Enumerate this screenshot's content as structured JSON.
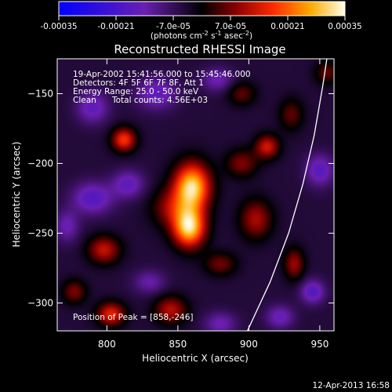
{
  "chart_data": {
    "type": "heatmap",
    "title": "Reconstructed RHESSI Image",
    "xlabel": "Heliocentric X (arcsec)",
    "ylabel": "Heliocentric Y (arcsec)",
    "xlim": [
      765,
      960
    ],
    "ylim": [
      -320,
      -125
    ],
    "x_ticks": [
      800,
      850,
      900,
      950
    ],
    "y_ticks": [
      -150,
      -200,
      -250,
      -300
    ],
    "colorbar": {
      "range": [
        -0.00035,
        0.00035
      ],
      "tick_values": [
        -0.00035,
        -0.00021,
        -7e-05,
        7e-05,
        0.00021,
        0.00035
      ],
      "tick_labels": [
        "-0.00035",
        "-0.00021",
        "-7.0e-05",
        "7.0e-05",
        "0.00021",
        "0.00035"
      ],
      "units_text": "(photons cm",
      "units_exp1": "-2",
      "units_mid": " s",
      "units_exp2": "-1",
      "units_mid2": " asec",
      "units_exp3": "-2",
      "units_close": ")"
    },
    "annotations": {
      "line1": "19-Apr-2002 15:41:56.000 to 15:45:46.000",
      "line2": "Detectors: 4F 5F 6F 7F 8F, Att 1",
      "line3": "Energy Range: 25.0 - 50.0 keV",
      "line4_left": "Clean",
      "line4_right": "Total counts: 4.56E+03",
      "peak": "Position of Peak = [858,-246]"
    },
    "sources": [
      {
        "x": 860,
        "y": -217,
        "amplitude": 0.00036,
        "sx": 9,
        "sy": 12
      },
      {
        "x": 858,
        "y": -246,
        "amplitude": 0.00035,
        "sx": 8,
        "sy": 10
      },
      {
        "x": 845,
        "y": -232,
        "amplitude": 0.00012,
        "sx": 10,
        "sy": 10
      },
      {
        "x": 812,
        "y": -183,
        "amplitude": 0.00022,
        "sx": 6,
        "sy": 6
      },
      {
        "x": 798,
        "y": -262,
        "amplitude": 0.00017,
        "sx": 8,
        "sy": 7
      },
      {
        "x": 777,
        "y": -292,
        "amplitude": 0.00012,
        "sx": 6,
        "sy": 6
      },
      {
        "x": 803,
        "y": -308,
        "amplitude": 0.0002,
        "sx": 7,
        "sy": 6
      },
      {
        "x": 845,
        "y": -305,
        "amplitude": 0.00016,
        "sx": 8,
        "sy": 7
      },
      {
        "x": 895,
        "y": -200,
        "amplitude": 0.00012,
        "sx": 8,
        "sy": 7
      },
      {
        "x": 913,
        "y": -188,
        "amplitude": 0.00018,
        "sx": 6,
        "sy": 6
      },
      {
        "x": 905,
        "y": -240,
        "amplitude": 0.00015,
        "sx": 8,
        "sy": 10
      },
      {
        "x": 932,
        "y": -272,
        "amplitude": 0.00014,
        "sx": 5,
        "sy": 8
      },
      {
        "x": 880,
        "y": -272,
        "amplitude": 0.00011,
        "sx": 8,
        "sy": 6
      },
      {
        "x": 895,
        "y": -150,
        "amplitude": 0.0001,
        "sx": 7,
        "sy": 6
      },
      {
        "x": 930,
        "y": -165,
        "amplitude": 0.0001,
        "sx": 6,
        "sy": 8
      },
      {
        "x": 955,
        "y": -135,
        "amplitude": 0.0001,
        "sx": 6,
        "sy": 6
      },
      {
        "x": 790,
        "y": -225,
        "amplitude": -0.00014,
        "sx": 10,
        "sy": 8
      },
      {
        "x": 815,
        "y": -215,
        "amplitude": -0.00012,
        "sx": 8,
        "sy": 7
      },
      {
        "x": 790,
        "y": -160,
        "amplitude": -0.00012,
        "sx": 8,
        "sy": 8
      },
      {
        "x": 835,
        "y": -150,
        "amplitude": -0.00012,
        "sx": 10,
        "sy": 8
      },
      {
        "x": 878,
        "y": -140,
        "amplitude": -0.0001,
        "sx": 8,
        "sy": 6
      },
      {
        "x": 950,
        "y": -205,
        "amplitude": -0.00013,
        "sx": 7,
        "sy": 8
      },
      {
        "x": 945,
        "y": -292,
        "amplitude": -0.00014,
        "sx": 6,
        "sy": 6
      },
      {
        "x": 922,
        "y": -310,
        "amplitude": -0.00011,
        "sx": 7,
        "sy": 6
      },
      {
        "x": 880,
        "y": -315,
        "amplitude": -0.0001,
        "sx": 8,
        "sy": 6
      },
      {
        "x": 772,
        "y": -245,
        "amplitude": -0.0001,
        "sx": 6,
        "sy": 8
      },
      {
        "x": 830,
        "y": -285,
        "amplitude": -9e-05,
        "sx": 8,
        "sy": 6
      }
    ],
    "limb_curve": [
      [
        899,
        -320
      ],
      [
        915,
        -285
      ],
      [
        928,
        -250
      ],
      [
        938,
        -215
      ],
      [
        946,
        -180
      ],
      [
        952,
        -145
      ],
      [
        955,
        -125
      ]
    ],
    "timestamp": "12-Apr-2013 16:58"
  }
}
